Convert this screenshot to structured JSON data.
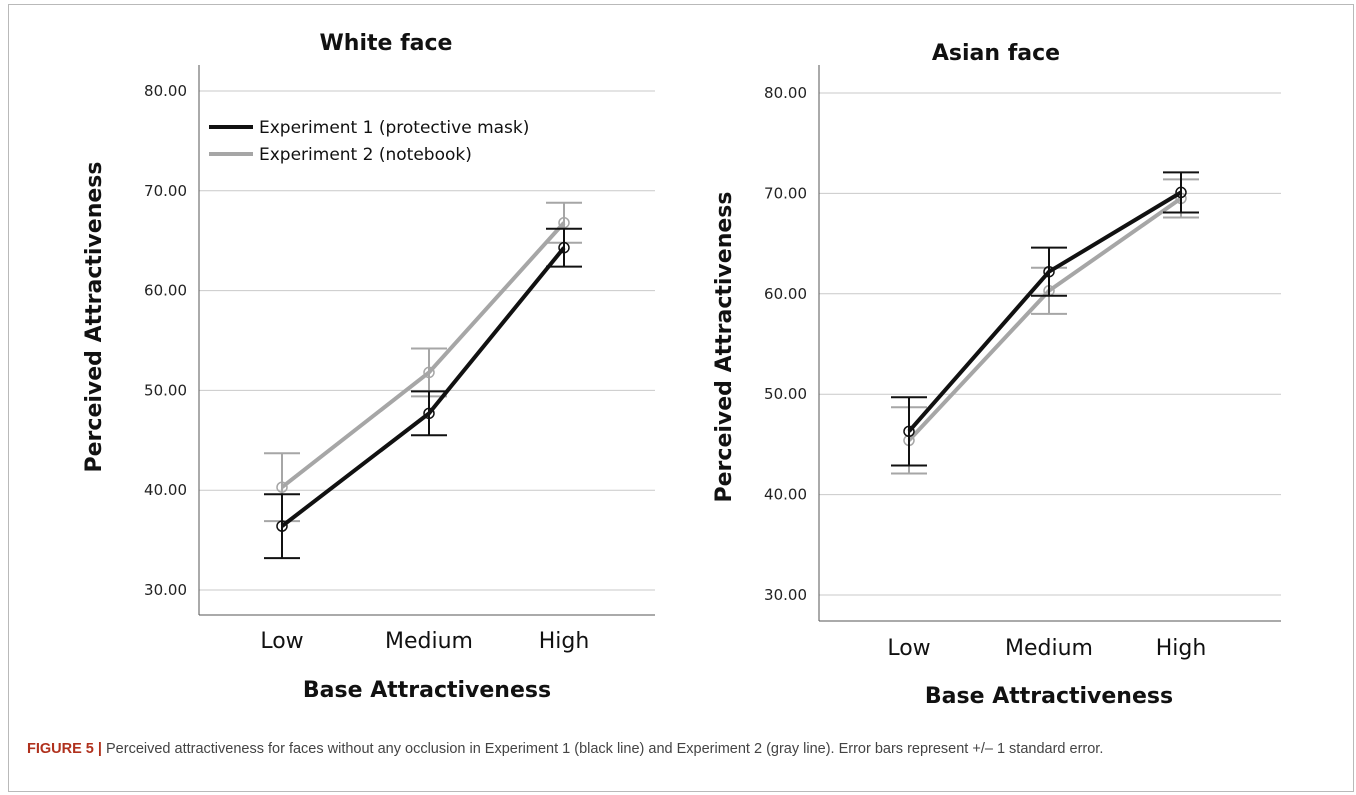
{
  "colors": {
    "experiment1": "#111111",
    "experiment2": "#a6a6a6",
    "grid": "#c9c9c9",
    "caption_label": "#b0311d"
  },
  "chart_data": [
    {
      "type": "line",
      "title": "White face",
      "xlabel": "Base Attractiveness",
      "ylabel": "Perceived Attractiveness",
      "categories": [
        "Low",
        "Medium",
        "High"
      ],
      "yticks": [
        "30.00",
        "40.00",
        "50.00",
        "60.00",
        "70.00",
        "80.00"
      ],
      "ylim": [
        27.5,
        82.5
      ],
      "grid": true,
      "legend": "top-left",
      "series": [
        {
          "name": "Experiment 1 (protective mask)",
          "color": "#111111",
          "values": [
            36.4,
            47.7,
            64.3
          ],
          "err": [
            3.2,
            2.2,
            1.9
          ]
        },
        {
          "name": "Experiment 2 (notebook)",
          "color": "#a6a6a6",
          "values": [
            40.3,
            51.8,
            66.8
          ],
          "err": [
            3.4,
            2.4,
            2.0
          ]
        }
      ],
      "error_bars": "+/- 1 standard error"
    },
    {
      "type": "line",
      "title": "Asian face",
      "xlabel": "Base Attractiveness",
      "ylabel": "Perceived Attractiveness",
      "categories": [
        "Low",
        "Medium",
        "High"
      ],
      "yticks": [
        "30.00",
        "40.00",
        "50.00",
        "60.00",
        "70.00",
        "80.00"
      ],
      "ylim": [
        27.5,
        82.5
      ],
      "grid": true,
      "legend": "none",
      "series": [
        {
          "name": "Experiment 1 (protective mask)",
          "color": "#111111",
          "values": [
            46.3,
            62.2,
            70.1
          ],
          "err": [
            3.4,
            2.4,
            2.0
          ]
        },
        {
          "name": "Experiment 2 (notebook)",
          "color": "#a6a6a6",
          "values": [
            45.4,
            60.3,
            69.5
          ],
          "err": [
            3.3,
            2.3,
            1.9
          ]
        }
      ],
      "error_bars": "+/- 1 standard error"
    }
  ],
  "caption": {
    "label": "FIGURE 5",
    "separator": "|",
    "text": "Perceived attractiveness for faces without any occlusion in Experiment 1 (black line) and Experiment 2 (gray line). Error bars represent +/– 1 standard error."
  }
}
